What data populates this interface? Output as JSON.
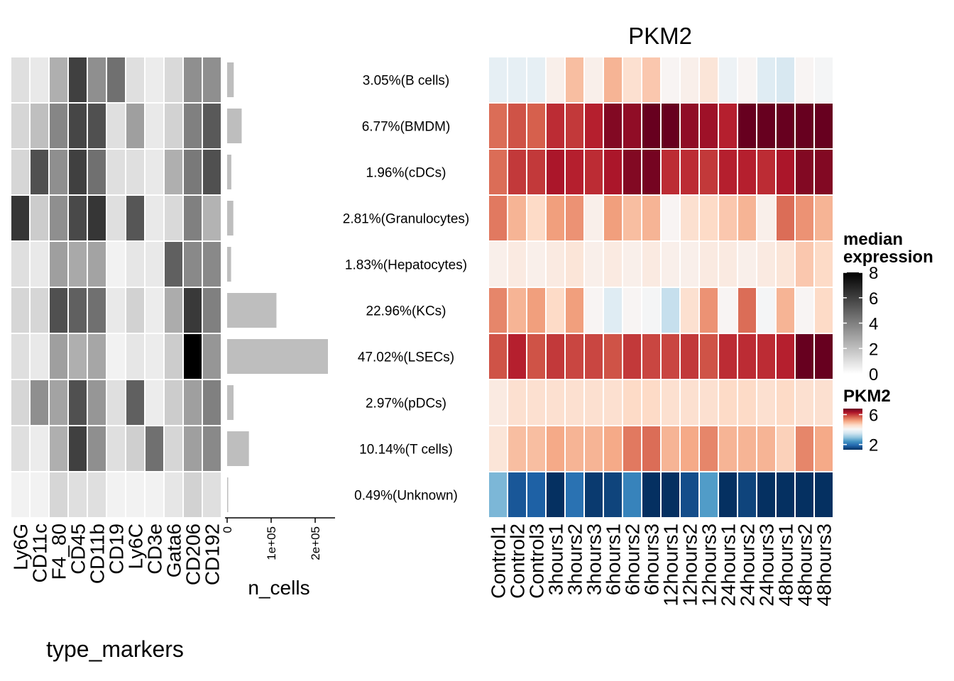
{
  "chart_data": [
    {
      "type": "heatmap",
      "title": "",
      "xlabel": "type_markers",
      "ylabel": "",
      "columns": [
        "Ly6G",
        "CD11c",
        "F4_80",
        "CD45",
        "CD11b",
        "CD19",
        "Ly6C",
        "CD3e",
        "Gata6",
        "CD206",
        "CD192"
      ],
      "rows": [
        "3.05%(B cells)",
        "6.77%(BMDM)",
        "1.96%(cDCs)",
        "2.81%(Granulocytes)",
        "1.83%(Hepatocytes)",
        "22.96%(KCs)",
        "47.02%(LSECs)",
        "2.97%(pDCs)",
        "10.14%(T cells)",
        "0.49%(Unknown)"
      ],
      "values": [
        [
          1.0,
          0.7,
          2.5,
          6.0,
          3.5,
          4.5,
          1.0,
          0.6,
          1.2,
          3.5,
          3.5
        ],
        [
          1.3,
          2.0,
          3.8,
          5.8,
          5.5,
          1.0,
          3.0,
          0.7,
          1.4,
          4.0,
          5.2
        ],
        [
          1.3,
          5.5,
          3.5,
          6.0,
          4.5,
          1.0,
          1.0,
          0.7,
          2.5,
          4.2,
          5.5
        ],
        [
          6.3,
          1.6,
          3.5,
          5.7,
          6.3,
          1.0,
          5.3,
          0.7,
          1.2,
          4.0,
          2.4
        ],
        [
          1.0,
          0.7,
          3.0,
          2.7,
          2.9,
          0.4,
          0.8,
          0.7,
          5.0,
          3.7,
          3.7
        ],
        [
          1.3,
          1.3,
          5.5,
          5.0,
          4.5,
          0.7,
          1.4,
          0.6,
          2.6,
          6.2,
          4.0
        ],
        [
          1.0,
          0.7,
          3.0,
          2.5,
          2.8,
          0.4,
          0.8,
          0.6,
          1.6,
          8.0,
          3.3
        ],
        [
          1.3,
          3.5,
          2.9,
          5.5,
          3.3,
          1.0,
          5.0,
          0.6,
          1.6,
          3.0,
          4.0
        ],
        [
          1.0,
          0.6,
          2.5,
          6.0,
          3.5,
          1.0,
          1.5,
          4.5,
          1.3,
          3.0,
          3.7
        ],
        [
          0.4,
          0.4,
          1.3,
          1.0,
          1.0,
          0.4,
          0.4,
          0.4,
          0.8,
          1.4,
          1.0
        ]
      ],
      "colorbar": {
        "name": "median\nexpression",
        "range": [
          0,
          8
        ],
        "ticks": [
          0,
          2,
          4,
          6,
          8
        ],
        "colors": [
          "#ffffff",
          "#000000"
        ]
      }
    },
    {
      "type": "bar",
      "title": "",
      "xlabel": "n_cells",
      "ylabel": "",
      "categories": [
        "3.05%(B cells)",
        "6.77%(BMDM)",
        "1.96%(cDCs)",
        "2.81%(Granulocytes)",
        "1.83%(Hepatocytes)",
        "22.96%(KCs)",
        "47.02%(LSECs)",
        "2.97%(pDCs)",
        "10.14%(T cells)",
        "0.49%(Unknown)"
      ],
      "values": [
        15000,
        33000,
        9500,
        14000,
        9000,
        112000,
        229000,
        14500,
        49500,
        2400
      ],
      "xlim": [
        0,
        250000
      ],
      "xticks": [
        0,
        100000,
        200000
      ],
      "xtick_labels": [
        "0",
        "1e+05",
        "2e+05"
      ],
      "bar_color": "#bebebe"
    },
    {
      "type": "heatmap",
      "title": "PKM2",
      "xlabel": "",
      "ylabel": "",
      "columns": [
        "Control1",
        "Control2",
        "Control3",
        "3hours1",
        "3hours2",
        "3hours3",
        "6hours1",
        "6hours2",
        "6hours3",
        "12hours1",
        "12hours2",
        "12hours3",
        "24hours1",
        "24hours2",
        "24hours3",
        "48hours1",
        "48hours2",
        "48hours3"
      ],
      "rows": [
        "3.05%(B cells)",
        "6.77%(BMDM)",
        "1.96%(cDCs)",
        "2.81%(Granulocytes)",
        "1.83%(Hepatocytes)",
        "22.96%(KCs)",
        "47.02%(LSECs)",
        "2.97%(pDCs)",
        "10.14%(T cells)",
        "0.49%(Unknown)"
      ],
      "values": [
        [
          3.8,
          3.8,
          3.8,
          4.2,
          4.9,
          4.2,
          5.0,
          4.5,
          4.8,
          4.1,
          4.2,
          4.4,
          3.9,
          4.1,
          3.7,
          3.6,
          4.1,
          4.0
        ],
        [
          5.6,
          5.8,
          5.7,
          6.1,
          6.0,
          6.2,
          6.6,
          6.5,
          6.8,
          6.9,
          6.5,
          6.4,
          6.2,
          7.0,
          6.8,
          7.0,
          7.5,
          7.3
        ],
        [
          5.6,
          6.0,
          6.0,
          6.3,
          6.2,
          6.1,
          6.3,
          6.6,
          6.7,
          6.1,
          6.1,
          6.0,
          6.2,
          6.2,
          6.1,
          6.3,
          6.6,
          6.6
        ],
        [
          5.5,
          5.0,
          4.6,
          5.2,
          5.3,
          4.2,
          5.2,
          4.9,
          5.0,
          4.1,
          4.5,
          4.6,
          4.8,
          5.0,
          4.2,
          5.6,
          5.3,
          5.0
        ],
        [
          4.2,
          4.3,
          4.2,
          4.3,
          4.4,
          4.2,
          4.3,
          4.2,
          4.3,
          4.2,
          4.2,
          4.3,
          4.3,
          4.2,
          4.3,
          4.4,
          4.8,
          4.6
        ],
        [
          5.4,
          5.0,
          5.2,
          4.6,
          5.2,
          4.1,
          3.7,
          4.1,
          4.0,
          3.4,
          4.5,
          5.3,
          4.1,
          5.6,
          4.0,
          5.0,
          4.1,
          4.6
        ],
        [
          5.8,
          6.2,
          5.8,
          6.0,
          5.9,
          5.9,
          5.8,
          6.0,
          5.9,
          5.9,
          6.0,
          5.8,
          6.1,
          6.1,
          6.1,
          6.2,
          6.9,
          7.3
        ],
        [
          4.3,
          4.5,
          4.5,
          4.5,
          4.5,
          4.5,
          4.5,
          4.6,
          4.6,
          4.5,
          4.5,
          4.5,
          4.6,
          4.6,
          4.5,
          4.6,
          4.5,
          4.5
        ],
        [
          4.4,
          4.9,
          4.9,
          5.1,
          5.0,
          5.0,
          5.1,
          5.5,
          5.6,
          5.0,
          5.1,
          5.4,
          5.0,
          5.0,
          5.0,
          4.7,
          5.4,
          5.1
        ],
        [
          2.8,
          1.7,
          1.8,
          1.0,
          2.0,
          1.4,
          1.5,
          2.2,
          0.8,
          0.0,
          1.6,
          2.5,
          1.0,
          1.5,
          0.7,
          0.9,
          0.9,
          1.3
        ]
      ],
      "colorbar": {
        "name": "PKM2",
        "range": [
          1.3,
          6.8
        ],
        "ticks": [
          2,
          6
        ],
        "colors": [
          "#053061",
          "#2166ac",
          "#4393c3",
          "#92c5de",
          "#d1e5f0",
          "#f7f7f7",
          "#fddbc7",
          "#f4a582",
          "#d6604d",
          "#b2182b",
          "#67001f"
        ]
      }
    }
  ]
}
